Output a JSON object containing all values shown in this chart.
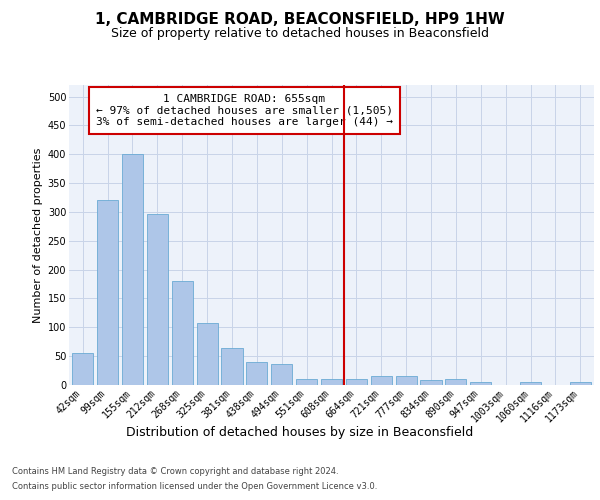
{
  "title": "1, CAMBRIDGE ROAD, BEACONSFIELD, HP9 1HW",
  "subtitle": "Size of property relative to detached houses in Beaconsfield",
  "xlabel": "Distribution of detached houses by size in Beaconsfield",
  "ylabel": "Number of detached properties",
  "categories": [
    "42sqm",
    "99sqm",
    "155sqm",
    "212sqm",
    "268sqm",
    "325sqm",
    "381sqm",
    "438sqm",
    "494sqm",
    "551sqm",
    "608sqm",
    "664sqm",
    "721sqm",
    "777sqm",
    "834sqm",
    "890sqm",
    "947sqm",
    "1003sqm",
    "1060sqm",
    "1116sqm",
    "1173sqm"
  ],
  "values": [
    55,
    320,
    400,
    297,
    180,
    108,
    65,
    40,
    37,
    10,
    10,
    10,
    15,
    15,
    8,
    10,
    5,
    0,
    5,
    0,
    5
  ],
  "bar_color": "#aec6e8",
  "bar_edge_color": "#6aaad4",
  "grid_color": "#c8d4e8",
  "background_color": "#edf2fa",
  "vline_color": "#cc0000",
  "vline_index": 11,
  "annotation_text": "1 CAMBRIDGE ROAD: 655sqm\n← 97% of detached houses are smaller (1,505)\n3% of semi-detached houses are larger (44) →",
  "annotation_box_edgecolor": "#cc0000",
  "ylim_max": 520,
  "yticks": [
    0,
    50,
    100,
    150,
    200,
    250,
    300,
    350,
    400,
    450,
    500
  ],
  "footnote_line1": "Contains HM Land Registry data © Crown copyright and database right 2024.",
  "footnote_line2": "Contains public sector information licensed under the Open Government Licence v3.0.",
  "title_fontsize": 11,
  "subtitle_fontsize": 9,
  "xlabel_fontsize": 9,
  "ylabel_fontsize": 8,
  "tick_fontsize": 7,
  "annotation_fontsize": 8,
  "footnote_fontsize": 6
}
